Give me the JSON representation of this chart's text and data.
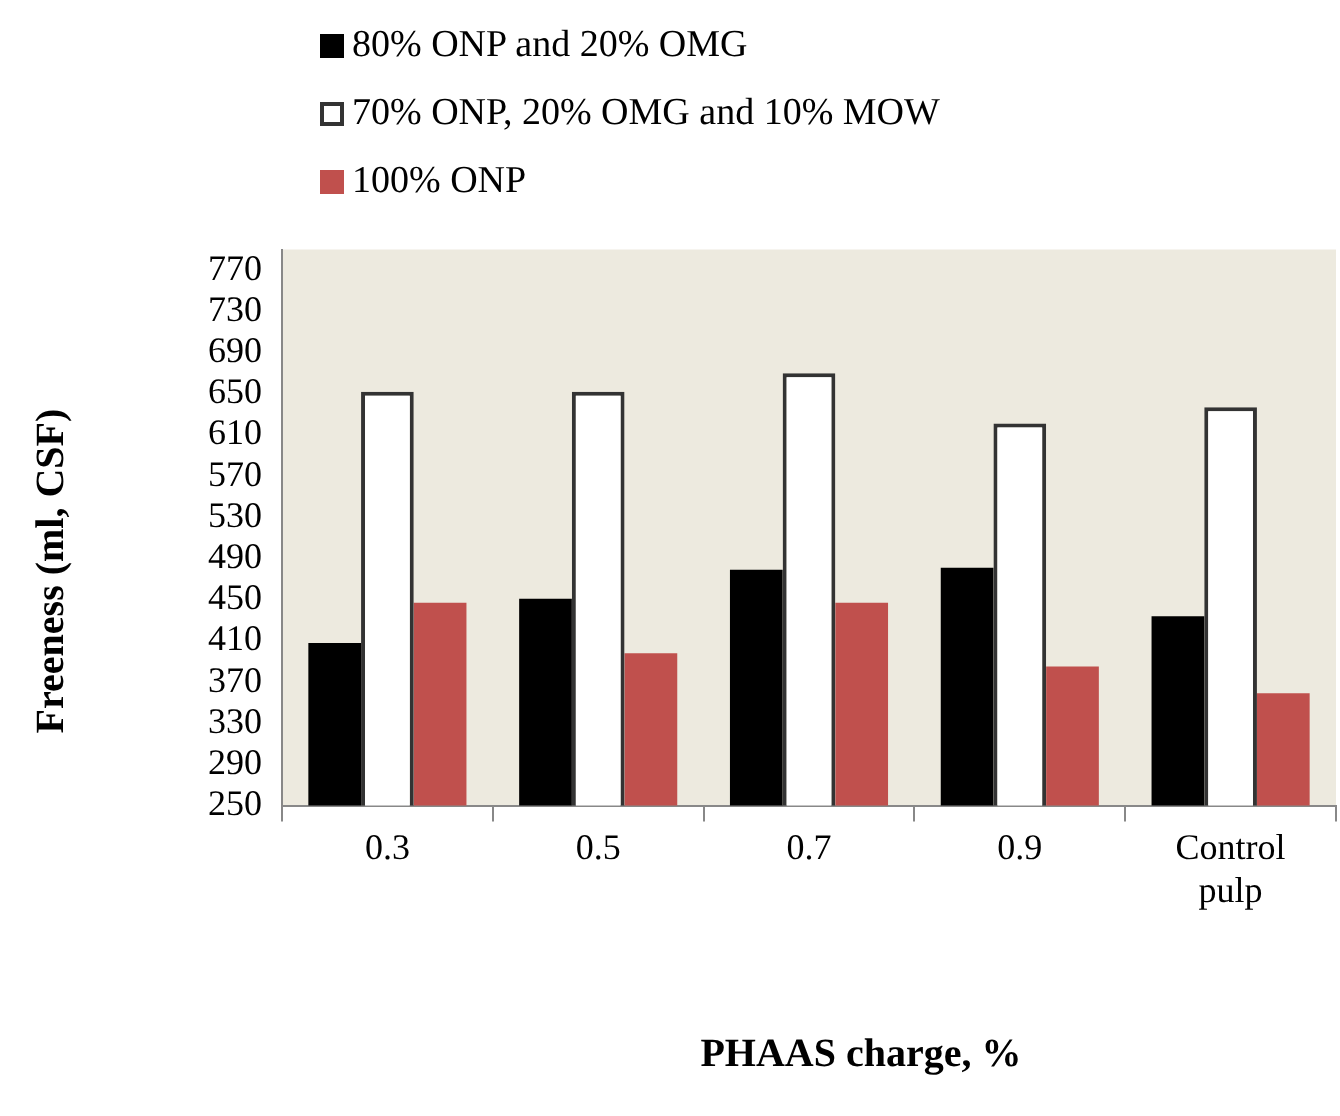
{
  "chart_data": {
    "type": "bar",
    "xlabel": "PHAAS charge, %",
    "ylabel": "Freeness (ml, CSF)",
    "categories": [
      "0.3",
      "0.5",
      "0.7",
      "0.9",
      "Control pulp"
    ],
    "series": [
      {
        "name": "80% ONP and 20% OMG",
        "color": "#000000",
        "values": [
          408,
          451,
          479,
          481,
          434
        ]
      },
      {
        "name": "70% ONP, 20% OMG and 10% MOW",
        "color": "#ffffff",
        "values": [
          652,
          652,
          670,
          621,
          637
        ]
      },
      {
        "name": "100% ONP",
        "color": "#c0504d",
        "values": [
          447,
          398,
          447,
          385,
          359
        ]
      }
    ],
    "ylim": [
      250,
      790
    ],
    "yticks": [
      250,
      290,
      330,
      370,
      410,
      450,
      490,
      530,
      570,
      610,
      650,
      690,
      730,
      770
    ],
    "grid": false,
    "legend": "top"
  }
}
